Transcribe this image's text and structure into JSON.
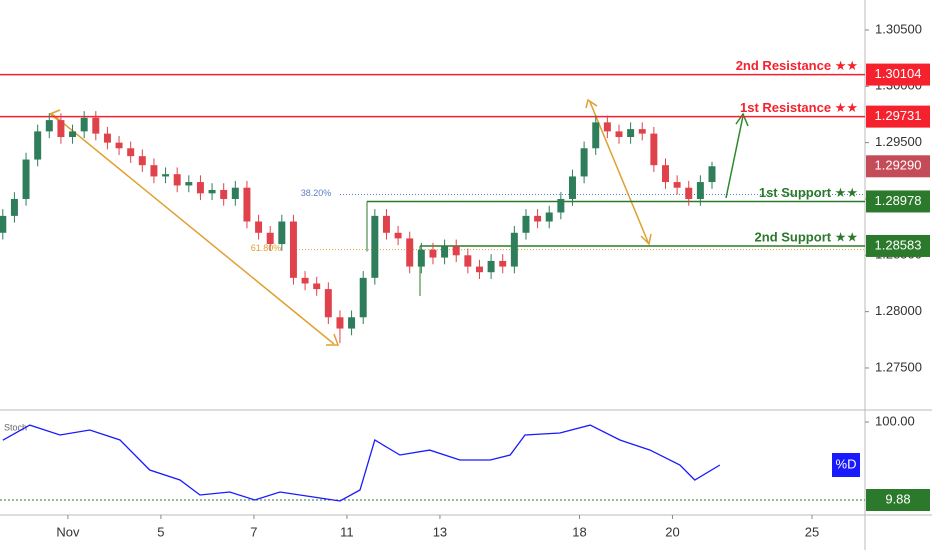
{
  "chart_data": {
    "type": "candlestick",
    "x": [
      -1.4,
      -1.15,
      -0.9,
      -0.65,
      -0.4,
      -0.15,
      0.1,
      0.35,
      0.6,
      0.85,
      1.1,
      1.35,
      1.6,
      1.85,
      2.1,
      2.35,
      2.6,
      2.85,
      3.1,
      3.35,
      3.6,
      3.85,
      4.1,
      4.35,
      4.6,
      4.85,
      5.1,
      5.35,
      5.6,
      5.85,
      6.1,
      6.35,
      6.6,
      6.85,
      7.1,
      7.35,
      7.6,
      7.85,
      8.1,
      8.35,
      8.6,
      8.85,
      9.1,
      9.35,
      9.6,
      9.85,
      10.1,
      10.35,
      10.6,
      10.85,
      11.1,
      11.35,
      11.6,
      11.85,
      12.1,
      12.35,
      12.6,
      12.85,
      13.1,
      13.35,
      13.6,
      13.85
    ],
    "open": [
      1.287,
      1.2885,
      1.29,
      1.2935,
      1.296,
      1.297,
      1.2955,
      1.296,
      1.2972,
      1.2958,
      1.295,
      1.2945,
      1.2938,
      1.293,
      1.292,
      1.2922,
      1.2912,
      1.2915,
      1.2905,
      1.2908,
      1.29,
      1.291,
      1.288,
      1.287,
      1.286,
      1.288,
      1.283,
      1.2825,
      1.282,
      1.2795,
      1.2785,
      1.2795,
      1.283,
      1.2885,
      1.287,
      1.2865,
      1.284,
      1.2855,
      1.2848,
      1.2858,
      1.285,
      1.284,
      1.2835,
      1.2845,
      1.284,
      1.287,
      1.2885,
      1.288,
      1.2888,
      1.29,
      1.292,
      1.2945,
      1.2968,
      1.296,
      1.2955,
      1.2962,
      1.2958,
      1.293,
      1.2915,
      1.291,
      1.29,
      1.2915
    ],
    "high": [
      1.2891,
      1.2906,
      1.2941,
      1.2966,
      1.2976,
      1.2976,
      1.2966,
      1.2978,
      1.2978,
      1.2964,
      1.2956,
      1.2951,
      1.2944,
      1.2936,
      1.2928,
      1.2928,
      1.2921,
      1.2921,
      1.2914,
      1.2914,
      1.2916,
      1.2916,
      1.2886,
      1.2876,
      1.2886,
      1.2886,
      1.2836,
      1.2831,
      1.2826,
      1.2801,
      1.2801,
      1.2836,
      1.2891,
      1.2891,
      1.2876,
      1.2871,
      1.2861,
      1.2861,
      1.2864,
      1.2864,
      1.2856,
      1.2846,
      1.2851,
      1.2851,
      1.2876,
      1.2891,
      1.2891,
      1.2894,
      1.2906,
      1.2926,
      1.2951,
      1.2974,
      1.2974,
      1.2966,
      1.2968,
      1.2968,
      1.2964,
      1.2936,
      1.2921,
      1.2916,
      1.2921,
      1.2933
    ],
    "low": [
      1.2864,
      1.2879,
      1.2894,
      1.2929,
      1.2954,
      1.2949,
      1.2949,
      1.2954,
      1.2952,
      1.2944,
      1.2939,
      1.2932,
      1.2924,
      1.2914,
      1.2914,
      1.2906,
      1.2906,
      1.2899,
      1.2899,
      1.2894,
      1.2894,
      1.2874,
      1.2864,
      1.2854,
      1.2854,
      1.2824,
      1.2819,
      1.2814,
      1.2789,
      1.2772,
      1.2779,
      1.2789,
      1.2824,
      1.2864,
      1.2859,
      1.2834,
      1.2834,
      1.2842,
      1.2842,
      1.2844,
      1.2834,
      1.2829,
      1.2829,
      1.2834,
      1.2834,
      1.2864,
      1.2874,
      1.2874,
      1.2882,
      1.2894,
      1.2914,
      1.2939,
      1.2954,
      1.2949,
      1.2949,
      1.2952,
      1.2924,
      1.2909,
      1.2904,
      1.2894,
      1.2894,
      1.2909
    ],
    "close": [
      1.2885,
      1.29,
      1.2935,
      1.296,
      1.297,
      1.2955,
      1.296,
      1.2972,
      1.2958,
      1.295,
      1.2945,
      1.2938,
      1.293,
      1.292,
      1.2922,
      1.2912,
      1.2915,
      1.2905,
      1.2908,
      1.29,
      1.291,
      1.288,
      1.287,
      1.286,
      1.288,
      1.283,
      1.2825,
      1.282,
      1.2795,
      1.2785,
      1.2795,
      1.283,
      1.2885,
      1.287,
      1.2865,
      1.284,
      1.2855,
      1.2848,
      1.2858,
      1.285,
      1.284,
      1.2835,
      1.2845,
      1.284,
      1.287,
      1.2885,
      1.288,
      1.2888,
      1.29,
      1.292,
      1.2945,
      1.2968,
      1.296,
      1.2955,
      1.2962,
      1.2958,
      1.293,
      1.2915,
      1.291,
      1.29,
      1.2915,
      1.2929
    ],
    "up_color": "#2e7d5b",
    "down_color": "#e0424c",
    "xlim": [
      -1.46,
      17.14
    ],
    "xticks": [
      {
        "value": 0,
        "label": "Nov"
      },
      {
        "value": 2,
        "label": "5"
      },
      {
        "value": 4,
        "label": "7"
      },
      {
        "value": 6,
        "label": "11"
      },
      {
        "value": 8,
        "label": "13"
      },
      {
        "value": 11,
        "label": "18"
      },
      {
        "value": 13,
        "label": "20"
      },
      {
        "value": 16,
        "label": "25"
      }
    ],
    "ylim": [
      1.27127,
      1.30766
    ],
    "yticks": [
      {
        "value": 1.305,
        "label": "1.30500"
      },
      {
        "value": 1.3,
        "label": "1.30000"
      },
      {
        "value": 1.295,
        "label": "1.29500"
      },
      {
        "value": 1.29,
        "label": "1.29000"
      },
      {
        "value": 1.285,
        "label": "1.28500"
      },
      {
        "value": 1.28,
        "label": "1.28000"
      },
      {
        "value": 1.275,
        "label": "1.27500"
      }
    ],
    "levels": [
      {
        "name": "2nd Resistance ★★",
        "value": 1.30104,
        "color": "#f5222d"
      },
      {
        "name": "1st Resistance ★★",
        "value": 1.29731,
        "color": "#f5222d"
      },
      {
        "name": "1st Support ★★",
        "value": 1.28978,
        "color": "#2b7a2b"
      },
      {
        "name": "2nd Support ★★",
        "value": 1.28583,
        "color": "#2b7a2b"
      }
    ],
    "fib": [
      {
        "label": "38.20%",
        "value": 1.2904,
        "color": "#5b7fc7"
      },
      {
        "label": "61.80%",
        "value": 1.2855,
        "color": "#e0a030"
      }
    ],
    "last_price": {
      "value": 1.2929,
      "label": "1.29290",
      "color": "#c44c58"
    },
    "stoch": {
      "type": "line",
      "name": "Stoch",
      "legend": "%D",
      "color": "#1a1aff",
      "x": [
        -1.4,
        -0.82,
        -0.17,
        0.47,
        1.12,
        1.76,
        2.41,
        2.84,
        3.48,
        4.02,
        4.56,
        5.42,
        5.85,
        6.28,
        6.6,
        7.14,
        7.78,
        8.43,
        9.08,
        9.51,
        9.83,
        10.58,
        11.23,
        11.87,
        12.52,
        13.16,
        13.48,
        14.02
      ],
      "values": [
        79,
        96.5,
        85,
        90.8,
        79.2,
        44.5,
        33,
        15.7,
        19.1,
        9.9,
        19.1,
        12.2,
        8.7,
        21.4,
        79.2,
        61.9,
        67.6,
        56.1,
        56.1,
        61.9,
        85,
        87.3,
        96.5,
        79.2,
        67.6,
        50.3,
        33,
        50.3
      ],
      "ylim": [
        -7.45,
        113.9
      ],
      "yticks": [
        {
          "value": 100,
          "label": "100.00"
        }
      ],
      "level": {
        "value": 9.88,
        "color": "#2b7a2b"
      }
    }
  }
}
